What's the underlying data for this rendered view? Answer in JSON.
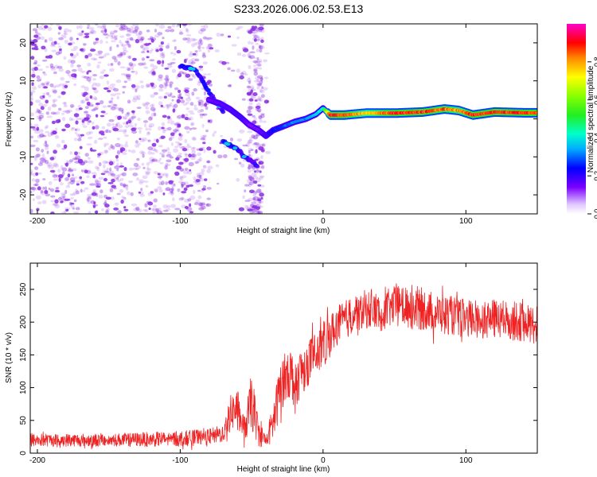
{
  "title": "S233.2026.006.02.53.E13",
  "colors": {
    "trace": "#ee2222",
    "background": "#ffffff",
    "axis": "#000000",
    "noise": "#8a2be2"
  },
  "chart_data": [
    {
      "type": "heatmap",
      "name": "spectrogram",
      "xlabel": "Height of straight line (km)",
      "ylabel": "Frequency (Hz)",
      "xlim": [
        -205,
        150
      ],
      "ylim": [
        -25,
        25
      ],
      "x_ticks": [
        -200,
        -100,
        0,
        100
      ],
      "x_tick_labels": [
        "-200",
        "-100",
        "0",
        "100"
      ],
      "y_ticks": [
        -20,
        -10,
        0,
        10,
        20
      ],
      "y_tick_labels": [
        "-20",
        "-10",
        "0",
        "10",
        "20"
      ],
      "colorbar": {
        "label": "Normalized spectral amplitude",
        "range": [
          0,
          1
        ],
        "ticks": [
          0,
          0.2,
          0.4,
          0.6,
          0.8
        ],
        "tick_labels": [
          "0.0",
          "0.2",
          "0.4",
          "0.6",
          "0.8"
        ]
      },
      "noise_region_km": [
        -205,
        -40
      ],
      "signal_track": {
        "x": [
          -80,
          -72,
          -65,
          -58,
          -52,
          -45,
          -40,
          -35,
          -28,
          -20,
          -12,
          -5,
          0,
          5,
          15,
          30,
          50,
          70,
          85,
          95,
          105,
          120,
          140,
          150
        ],
        "freq": [
          5,
          4,
          2.5,
          0.5,
          -1.5,
          -3,
          -4.5,
          -3,
          -2,
          -0.8,
          0,
          1.2,
          2.8,
          1,
          1,
          1.5,
          1.5,
          1.8,
          2.6,
          2.2,
          1,
          1.8,
          1.6,
          1.6
        ],
        "amplitude": [
          0.15,
          0.18,
          0.18,
          0.2,
          0.15,
          0.15,
          0.2,
          0.25,
          0.3,
          0.35,
          0.35,
          0.4,
          0.45,
          0.95,
          0.95,
          0.8,
          0.95,
          0.95,
          0.9,
          0.85,
          0.95,
          0.95,
          0.95,
          0.95
        ]
      },
      "secondary_tracks": [
        {
          "x": [
            -100,
            -90,
            -85,
            -80,
            -75,
            -70
          ],
          "freq": [
            14,
            13,
            10.5,
            7,
            4.5,
            2
          ]
        },
        {
          "x": [
            -70,
            -60,
            -55,
            -50,
            -46
          ],
          "freq": [
            -6,
            -8,
            -10,
            -11,
            -12.5
          ]
        }
      ]
    },
    {
      "type": "line",
      "name": "snr",
      "xlabel": "Height of straight line (km)",
      "ylabel": "SNR (10 * v/v)",
      "xlim": [
        -205,
        150
      ],
      "ylim": [
        0,
        290
      ],
      "x_ticks": [
        -200,
        -100,
        0,
        100
      ],
      "x_tick_labels": [
        "-200",
        "-100",
        "0",
        "100"
      ],
      "y_ticks": [
        0,
        50,
        100,
        150,
        200,
        250
      ],
      "y_tick_labels": [
        "0",
        "50",
        "100",
        "150",
        "200",
        "250"
      ],
      "series": [
        {
          "name": "SNR",
          "envelope_x": [
            -205,
            -150,
            -100,
            -80,
            -70,
            -65,
            -60,
            -55,
            -50,
            -45,
            -40,
            -35,
            -30,
            -25,
            -20,
            -10,
            0,
            10,
            20,
            30,
            40,
            50,
            60,
            80,
            100,
            120,
            140,
            150
          ],
          "envelope_mean": [
            20,
            20,
            22,
            25,
            30,
            60,
            70,
            35,
            80,
            30,
            20,
            45,
            100,
            130,
            110,
            140,
            165,
            195,
            210,
            220,
            215,
            225,
            225,
            215,
            205,
            205,
            200,
            195
          ],
          "envelope_spread": [
            10,
            10,
            12,
            12,
            14,
            28,
            30,
            18,
            45,
            20,
            12,
            30,
            40,
            45,
            40,
            35,
            35,
            30,
            30,
            30,
            30,
            30,
            35,
            30,
            30,
            30,
            30,
            30
          ]
        }
      ]
    }
  ]
}
